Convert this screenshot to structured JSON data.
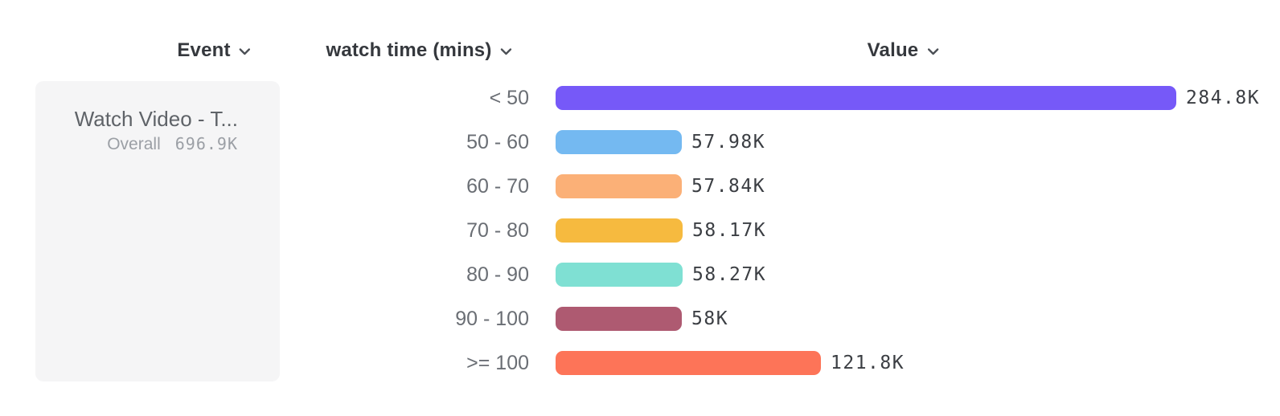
{
  "header": {
    "columns": [
      {
        "label": "Event"
      },
      {
        "label": "watch time (mins)"
      },
      {
        "label": "Value"
      }
    ]
  },
  "legend": {
    "event_title": "Watch Video - T...",
    "overall_label": "Overall",
    "overall_value": "696.9K"
  },
  "chart_data": {
    "type": "bar",
    "orientation": "horizontal",
    "xlabel": "Value",
    "ylabel": "watch time (mins)",
    "categories": [
      "< 50",
      "50 - 60",
      "60 - 70",
      "70 - 80",
      "80 - 90",
      "90 - 100",
      ">= 100"
    ],
    "values": [
      284800,
      57980,
      57840,
      58170,
      58270,
      58000,
      121800
    ],
    "value_labels": [
      "284.8K",
      "57.98K",
      "57.84K",
      "58.17K",
      "58.27K",
      "58K",
      "121.8K"
    ],
    "bar_colors": [
      "#7659f8",
      "#74b9f1",
      "#fbb077",
      "#f6ba3f",
      "#7fe0d3",
      "#ae5a71",
      "#fd7458"
    ],
    "xlim": [
      0,
      284800
    ],
    "grid": false,
    "legend_entries": [
      "Watch Video - T...  Overall 696.9K"
    ],
    "legend_position": "left"
  },
  "colors": {
    "header_text": "#35383d",
    "chevron": "#4a4e54",
    "category_label": "#6a6e74",
    "value_label": "#3b3e43",
    "card_background": "#f5f5f6",
    "card_title": "#5f6368",
    "card_subtitle": "#9b9fa5"
  }
}
